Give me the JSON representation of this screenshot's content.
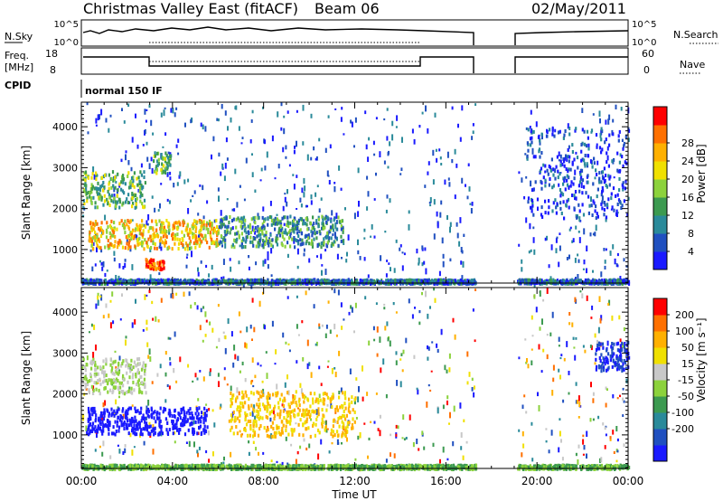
{
  "header": {
    "station": "Christmas Valley East (fitACF)",
    "beam": "Beam 06",
    "date": "02/May/2011"
  },
  "status_panels": {
    "nsky_label": "N.Sky",
    "nsky_ticks": [
      "10^5",
      "10^0"
    ],
    "nsearch_label": "N.Search",
    "nsearch_ticks": [
      "10^5",
      "10^0"
    ],
    "freq_label": "Freq.",
    "freq_unit": "[MHz]",
    "freq_ticks": [
      "18",
      "8"
    ],
    "nave_label": "Nave",
    "nave_ticks": [
      "60",
      "0"
    ],
    "cpid_label": "CPID",
    "cpid_value": "normal 150 IF"
  },
  "chart_data": [
    {
      "type": "heatmap",
      "panel": "power",
      "xlabel": "Time UT",
      "ylabel": "Slant Range [km]",
      "xlim": [
        0,
        24
      ],
      "ylim": [
        180,
        4600
      ],
      "xticks": [
        "00:00",
        "04:00",
        "08:00",
        "12:00",
        "16:00",
        "20:00",
        "00:00"
      ],
      "yticks": [
        1000,
        2000,
        3000,
        4000
      ],
      "colorbar": {
        "label": "Power [dB]",
        "ticks": [
          "4",
          "8",
          "12",
          "16",
          "20",
          "24",
          "28"
        ],
        "colors": [
          "#1a1aff",
          "#2050c0",
          "#2a8a9a",
          "#3c9a50",
          "#8cd23c",
          "#f0e000",
          "#ffb000",
          "#ff7000",
          "#ff0000"
        ]
      },
      "data_gap": {
        "start": 17.3,
        "end": 19.1
      },
      "features": [
        {
          "t0": 0.0,
          "t1": 2.8,
          "r0": 2050,
          "r1": 2950,
          "level": 4
        },
        {
          "t0": 0.3,
          "t1": 6.0,
          "r0": 1050,
          "r1": 1750,
          "level": 6
        },
        {
          "t0": 2.8,
          "t1": 3.6,
          "r0": 550,
          "r1": 800,
          "level": 8
        },
        {
          "t0": 6.0,
          "t1": 11.5,
          "r0": 1100,
          "r1": 1850,
          "level": 3
        },
        {
          "t0": 3.1,
          "t1": 3.9,
          "r0": 2900,
          "r1": 3400,
          "level": 4
        },
        {
          "t0": 0.0,
          "t1": 17.3,
          "r0": 200,
          "r1": 300,
          "level": 2
        },
        {
          "t0": 19.1,
          "t1": 24.0,
          "r0": 200,
          "r1": 300,
          "level": 2
        },
        {
          "t0": 19.5,
          "t1": 24.0,
          "r0": 1800,
          "r1": 4000,
          "level": 1
        }
      ]
    },
    {
      "type": "heatmap",
      "panel": "velocity",
      "xlabel": "Time UT",
      "ylabel": "Slant Range [km]",
      "xlim": [
        0,
        24
      ],
      "ylim": [
        180,
        4600
      ],
      "xticks": [
        "00:00",
        "04:00",
        "08:00",
        "12:00",
        "16:00",
        "20:00",
        "00:00"
      ],
      "yticks": [
        1000,
        2000,
        3000,
        4000
      ],
      "colorbar": {
        "label": "Velocity [m s⁻¹]",
        "ticks": [
          "200",
          "100",
          "50",
          "15",
          "-15",
          "-50",
          "-100",
          "-200"
        ],
        "colors": [
          "#1a1aff",
          "#2050c0",
          "#2a8a9a",
          "#3c9a50",
          "#8cd23c",
          "#c8c8c8",
          "#f0e000",
          "#ffb000",
          "#ff7000",
          "#ff0000"
        ]
      },
      "data_gap": {
        "start": 17.3,
        "end": 19.1
      },
      "features": [
        {
          "t0": 0.0,
          "t1": 2.8,
          "r0": 2050,
          "r1": 2900,
          "vel": 5
        },
        {
          "t0": 0.2,
          "t1": 5.5,
          "r0": 1050,
          "r1": 1700,
          "vel": 0
        },
        {
          "t0": 6.5,
          "t1": 12.0,
          "r0": 1000,
          "r1": 2100,
          "vel": 7
        },
        {
          "t0": 0.0,
          "t1": 17.3,
          "r0": 200,
          "r1": 300,
          "vel": 4
        },
        {
          "t0": 19.1,
          "t1": 24.0,
          "r0": 200,
          "r1": 300,
          "vel": 4
        },
        {
          "t0": 22.5,
          "t1": 24.0,
          "r0": 2600,
          "r1": 3300,
          "vel": 1
        }
      ]
    }
  ]
}
